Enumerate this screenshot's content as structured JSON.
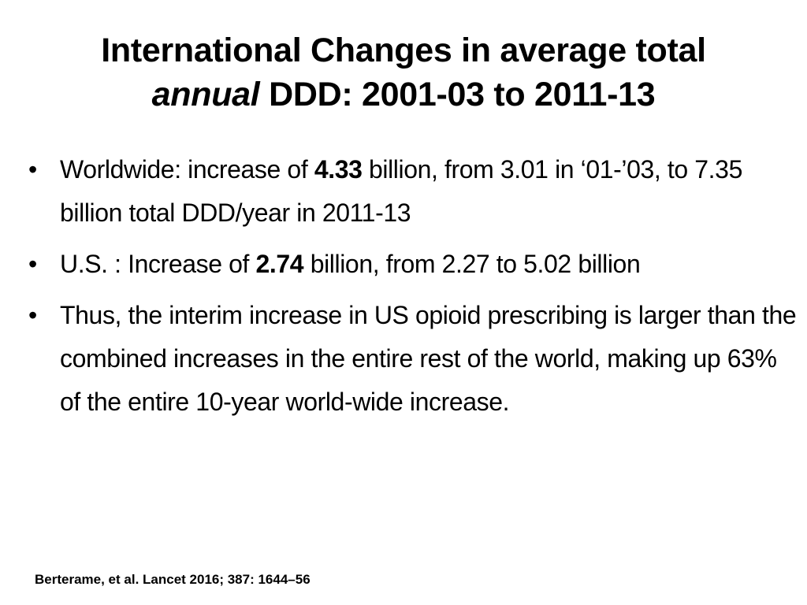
{
  "title": {
    "line1": "International Changes in average total",
    "line2_italic": "annual",
    "line2_rest": " DDD: 2001-03 to 2011-13"
  },
  "bullets": [
    {
      "marker": "•",
      "pre": "Worldwide: increase of ",
      "bold": "4.33",
      "post": " billion, from 3.01 in ‘01-’03, to 7.35 billion total DDD/year in 2011-13"
    },
    {
      "marker": "•",
      "pre": "U.S. : Increase of ",
      "bold": "2.74",
      "post": " billion, from 2.27 to 5.02 billion"
    },
    {
      "marker": "•",
      "text": "Thus, the interim increase in US opioid prescribing is larger than the combined increases in the entire rest of the world, making up 63% of the entire 10-year world-wide increase."
    }
  ],
  "citation": "Berterame, et al. Lancet 2016; 387: 1644–56"
}
